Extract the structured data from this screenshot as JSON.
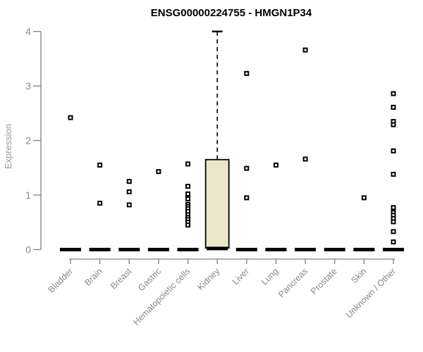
{
  "title": "ENSG00000224755 - HMGN1P34",
  "chart_data": {
    "type": "boxplot",
    "title": "ENSG00000224755 - HMGN1P34",
    "xlabel": "",
    "ylabel": "Expression",
    "ylim": [
      0,
      4
    ],
    "yticks": [
      0,
      1,
      2,
      3,
      4
    ],
    "grid": false,
    "legend": "none",
    "categories": [
      "Bladder",
      "Brain",
      "Breast",
      "Gastric",
      "Hematopoietic cells",
      "Kidney",
      "Liver",
      "Lung",
      "Pancreas",
      "Prostate",
      "Skin",
      "Unknown / Other"
    ],
    "series": [
      {
        "category": "Bladder",
        "median": 0,
        "points": [
          2.42
        ]
      },
      {
        "category": "Brain",
        "median": 0,
        "points": [
          1.55,
          0.85
        ]
      },
      {
        "category": "Breast",
        "median": 0,
        "points": [
          1.25,
          1.06,
          0.82
        ]
      },
      {
        "category": "Gastric",
        "median": 0,
        "points": [
          1.43
        ]
      },
      {
        "category": "Hematopoietic cells",
        "median": 0,
        "points": [
          1.57,
          1.16,
          1.02,
          0.93,
          0.83,
          0.79,
          0.75,
          0.7,
          0.64,
          0.59,
          0.55,
          0.5,
          0.45
        ]
      },
      {
        "category": "Kidney",
        "median": 0.02,
        "box": {
          "q1": 0.03,
          "q3": 1.65,
          "whisker_high": 4.0
        },
        "points": []
      },
      {
        "category": "Liver",
        "median": 0,
        "points": [
          3.23,
          1.49,
          0.95
        ]
      },
      {
        "category": "Lung",
        "median": 0,
        "points": [
          1.55
        ]
      },
      {
        "category": "Pancreas",
        "median": 0,
        "points": [
          3.66,
          1.66
        ]
      },
      {
        "category": "Prostate",
        "median": 0,
        "points": []
      },
      {
        "category": "Skin",
        "median": 0,
        "points": [
          0.95
        ]
      },
      {
        "category": "Unknown / Other",
        "median": 0,
        "points": [
          2.86,
          2.61,
          2.35,
          2.29,
          1.81,
          1.38,
          0.77,
          0.68,
          0.63,
          0.57,
          0.51,
          0.33,
          0.14
        ]
      }
    ],
    "colors": {
      "background": "#ffffff",
      "box_fill": "#ece7cb",
      "box_stroke": "#000000",
      "point": "#000000",
      "median": "#000000",
      "axis": "#808080",
      "tick_label": "#888888",
      "axis_label": "#999999",
      "title": "#000000"
    }
  }
}
